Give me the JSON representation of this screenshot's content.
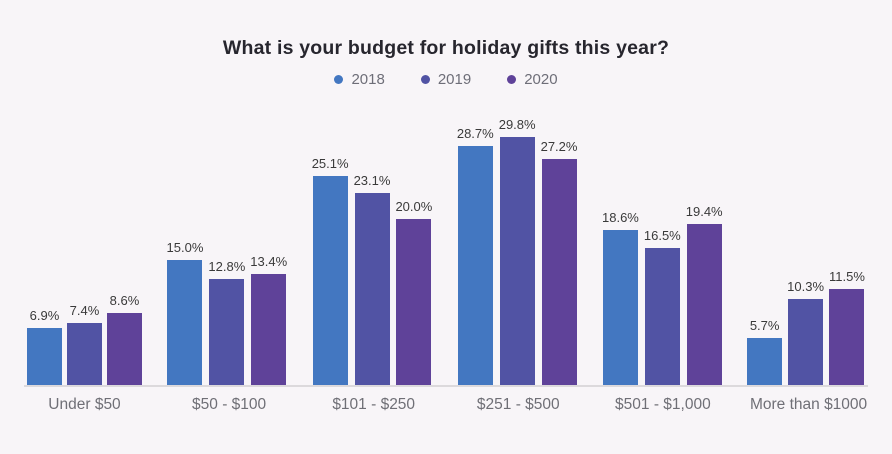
{
  "title": "What is your budget for holiday gifts this year?",
  "colors": {
    "background": "#f8f5f8",
    "title_text": "#27262e",
    "value_label_text": "#3a3a3a",
    "category_label_text": "#6f6f76",
    "legend_text": "#6e6e78",
    "axis_line": "#dcd9dc",
    "series_2018": "#4377c1",
    "series_2019": "#5153a4",
    "series_2020": "#5f4299"
  },
  "legend": {
    "items": [
      "2018",
      "2019",
      "2020"
    ]
  },
  "chart_data": {
    "type": "bar",
    "title": "What is your budget for holiday gifts this year?",
    "categories": [
      "Under $50",
      "$50 - $100",
      "$101 - $250",
      "$251 - $500",
      "$501 - $1,000",
      "More than $1000"
    ],
    "series": [
      {
        "name": "2018",
        "color": "#4377c1",
        "values": [
          6.9,
          15.0,
          25.1,
          28.7,
          18.6,
          5.7
        ]
      },
      {
        "name": "2019",
        "color": "#5153a4",
        "values": [
          7.4,
          12.8,
          23.1,
          29.8,
          16.5,
          10.3
        ]
      },
      {
        "name": "2020",
        "color": "#5f4299",
        "values": [
          8.6,
          13.4,
          20.0,
          27.2,
          19.4,
          11.5
        ]
      }
    ],
    "value_suffix": "%",
    "value_decimals": 1,
    "data_labels": true,
    "xlabel": "",
    "ylabel": "",
    "ylim": [
      0,
      30
    ],
    "grid": false,
    "legend_position": "top"
  }
}
